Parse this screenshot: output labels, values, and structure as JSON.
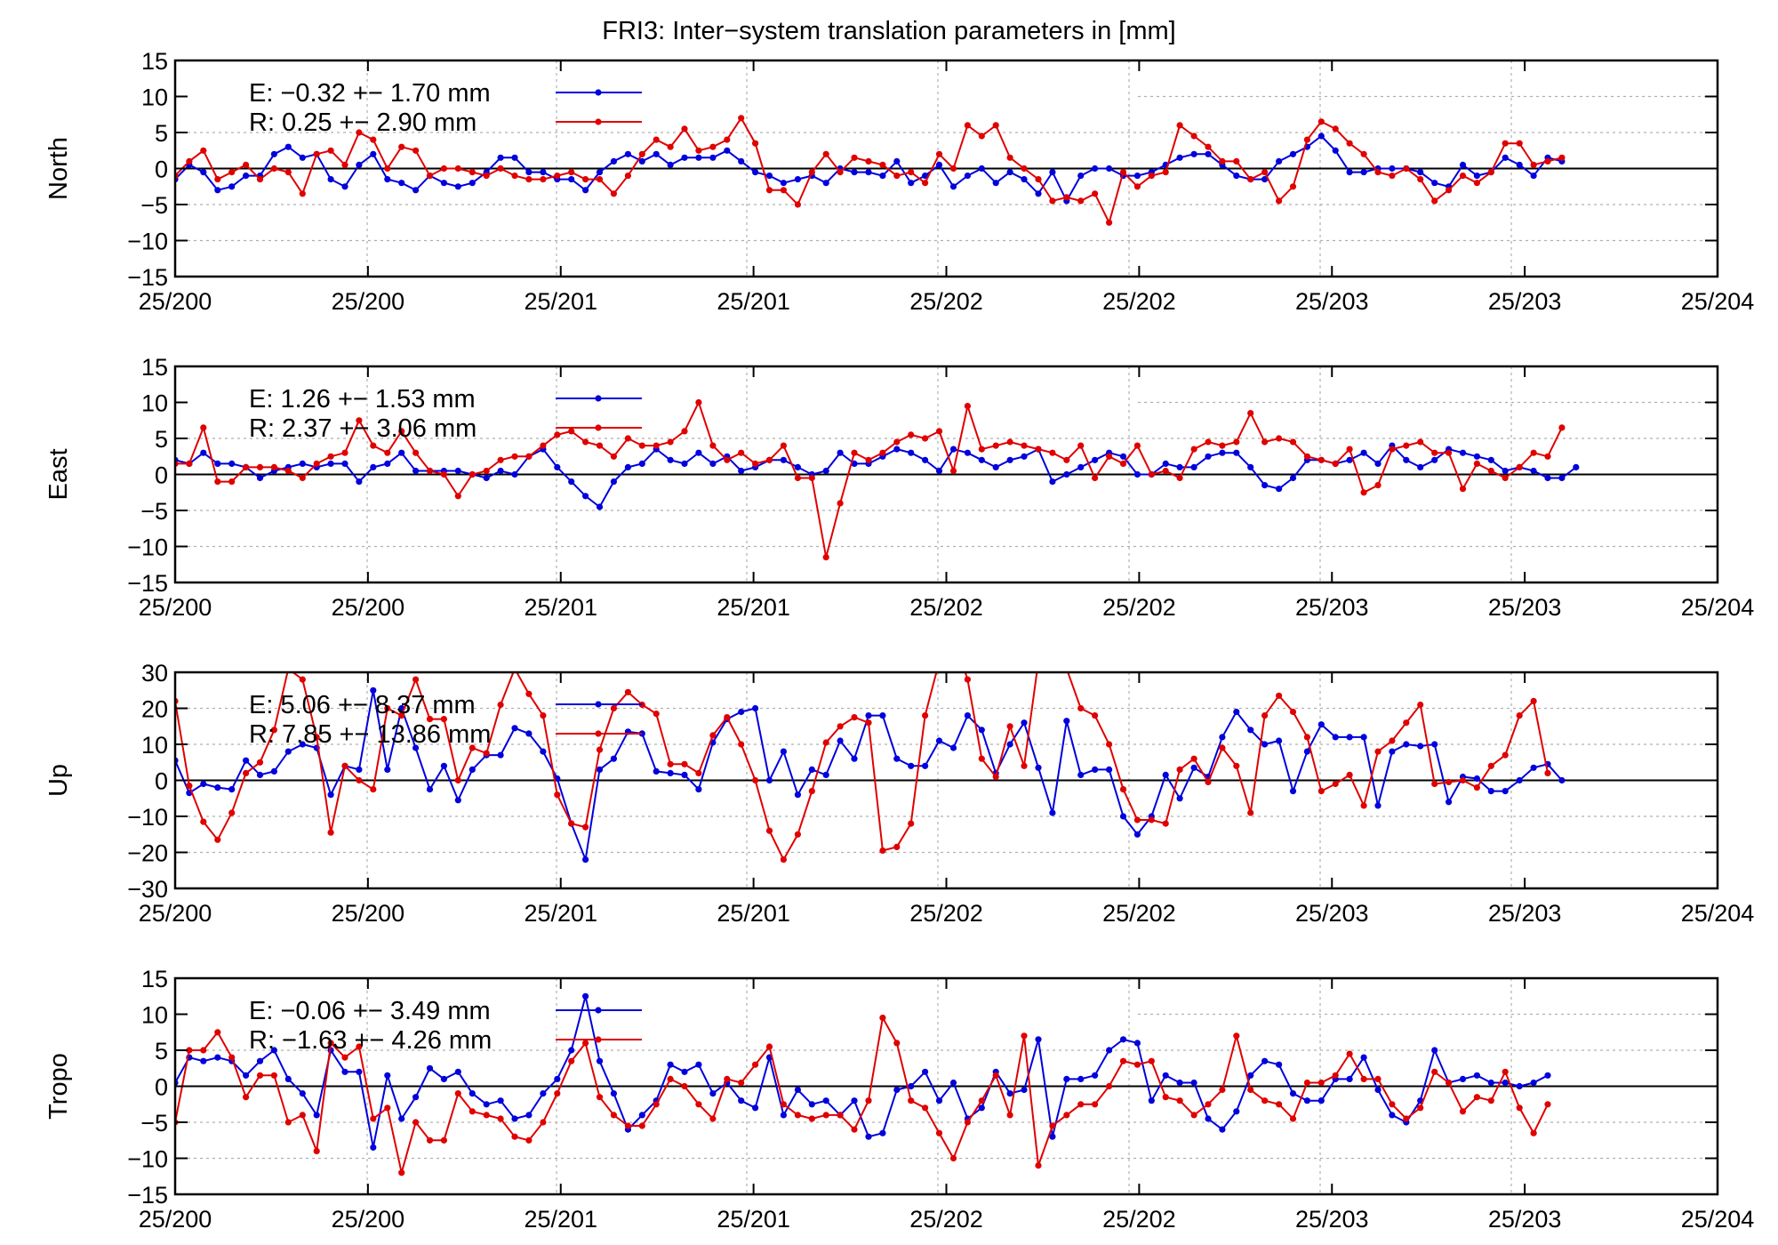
{
  "title": "FRI3: Inter−system translation parameters in [mm]",
  "colors": {
    "E": "#0000dd",
    "R": "#e00000"
  },
  "x_tick_labels": [
    "25/200",
    "25/200",
    "25/201",
    "25/201",
    "25/202",
    "25/202",
    "25/203",
    "25/203",
    "25/204"
  ],
  "chart_data": [
    {
      "type": "line",
      "ylabel": "North",
      "ylim": [
        -15,
        15
      ],
      "yticks": [
        15,
        10,
        5,
        0,
        -5,
        -10,
        -15
      ],
      "ytick_labels": [
        "15",
        "10",
        "5",
        "0",
        "−5",
        "−10",
        "−15"
      ],
      "xlim": [
        0,
        109
      ],
      "series": [
        {
          "name": "E",
          "legend": "E:  −0.32 +− 1.70 mm",
          "values": [
            -1.5,
            0.5,
            -0.5,
            -3,
            -2.5,
            -1,
            -1,
            2,
            3,
            1.5,
            2,
            -1.5,
            -2.5,
            0.5,
            2,
            -1.5,
            -2,
            -3,
            -1,
            -2,
            -2.5,
            -2,
            -0.5,
            1.5,
            1.5,
            -0.5,
            -0.5,
            -1.5,
            -1.5,
            -3,
            -0.5,
            1,
            2,
            1,
            2,
            0.5,
            1.5,
            1.5,
            1.5,
            2.5,
            1,
            -0.5,
            -1,
            -2,
            -1.5,
            -1,
            -2,
            0,
            -0.5,
            -0.5,
            -1,
            1,
            -2,
            -1,
            0.5,
            -2.5,
            -1,
            0,
            -2,
            -0.5,
            -1.5,
            -3.5,
            -0.5,
            -4.5,
            -1,
            0,
            0,
            -1,
            -1,
            -0.5,
            0.5,
            1.5,
            2,
            2,
            0.5,
            -1,
            -1.5,
            -1.5,
            1,
            2,
            3,
            4.5,
            2.5,
            -0.5,
            -0.5,
            0,
            0,
            0,
            -0.5,
            -2,
            -2.5,
            0.5,
            -1,
            -0.5,
            1.5,
            0.5,
            -1,
            1.5,
            1
          ]
        },
        {
          "name": "R",
          "legend": "R:   0.25 +− 2.90 mm",
          "values": [
            -1,
            1,
            2.5,
            -1.5,
            -0.5,
            0.5,
            -1.5,
            0,
            -0.5,
            -3.5,
            2,
            2.5,
            0.5,
            5,
            4,
            0,
            3,
            2.5,
            -1,
            0,
            0,
            -0.5,
            -1,
            0,
            -1,
            -1.5,
            -1.5,
            -1,
            -0.5,
            -1.5,
            -1.5,
            -3.5,
            -1,
            2,
            4,
            3,
            5.5,
            2.5,
            3,
            4,
            7,
            3.5,
            -3,
            -3,
            -5,
            -0.5,
            2,
            -0.5,
            1.5,
            1,
            0.5,
            -1,
            -0.5,
            -2,
            2,
            0,
            6,
            4.5,
            6,
            1.5,
            0,
            -1.5,
            -4.5,
            -4,
            -4.5,
            -3.5,
            -7.5,
            -0.5,
            -2.5,
            -1,
            -0.5,
            6,
            4.5,
            3,
            1,
            1,
            -1.5,
            -0.5,
            -4.5,
            -2.5,
            4,
            6.5,
            5.5,
            3.5,
            2,
            -0.5,
            -1,
            0,
            -1.5,
            -4.5,
            -3,
            -1,
            -2,
            -0.5,
            3.5,
            3.5,
            0.5,
            1,
            1.5
          ]
        }
      ]
    },
    {
      "type": "line",
      "ylabel": "East",
      "ylim": [
        -15,
        15
      ],
      "yticks": [
        15,
        10,
        5,
        0,
        -5,
        -10,
        -15
      ],
      "ytick_labels": [
        "15",
        "10",
        "5",
        "0",
        "−5",
        "−10",
        "−15"
      ],
      "xlim": [
        0,
        109
      ],
      "series": [
        {
          "name": "E",
          "legend": "E:   1.26 +− 1.53 mm",
          "values": [
            2,
            1.5,
            3,
            1.5,
            1.5,
            1,
            -0.5,
            0.5,
            1,
            1.5,
            1,
            1.5,
            1.5,
            -1,
            1,
            1.5,
            3,
            0.5,
            0.5,
            0.5,
            0.5,
            0,
            -0.5,
            0.5,
            0,
            2.5,
            3.5,
            1,
            -1,
            -3,
            -4.5,
            -1,
            1,
            1.5,
            3.5,
            2,
            1.5,
            3,
            1.5,
            2.5,
            0.5,
            1,
            2,
            2,
            1,
            0,
            0.5,
            3,
            1.5,
            1.5,
            2.5,
            3.5,
            3,
            2,
            0.5,
            3.5,
            3,
            2,
            1,
            2,
            2.5,
            3.5,
            -1,
            0,
            1,
            2,
            3,
            2.5,
            0,
            0,
            1.5,
            1,
            1,
            2.5,
            3,
            3,
            1,
            -1.5,
            -2,
            -0.5,
            2,
            2,
            1.5,
            2,
            3,
            1.5,
            4,
            2,
            1,
            2,
            3.5,
            3,
            2.5,
            2,
            0.5,
            1,
            0.5,
            -0.5,
            -0.5,
            1
          ]
        },
        {
          "name": "R",
          "legend": "R:   2.37 +− 3.06 mm",
          "values": [
            1.5,
            1.5,
            6.5,
            -1,
            -1,
            1,
            1,
            1,
            0.5,
            -0.5,
            1.5,
            2.5,
            3,
            7.5,
            4,
            3,
            6,
            3,
            0.5,
            0,
            -3,
            0,
            0.5,
            2,
            2.5,
            2.5,
            4,
            5.5,
            6,
            4.5,
            4,
            2.5,
            5,
            4,
            4,
            4.5,
            6,
            10,
            4,
            2,
            3,
            1.5,
            2,
            4,
            -0.5,
            -0.5,
            -11.5,
            -4,
            3,
            2,
            3,
            4.5,
            5.5,
            5,
            6,
            0.5,
            9.5,
            3.5,
            4,
            4.5,
            4,
            3.5,
            3,
            2,
            4,
            -0.5,
            2.5,
            1.5,
            4,
            0,
            0.5,
            -0.5,
            3.5,
            4.5,
            4,
            4.5,
            8.5,
            4.5,
            5,
            4.5,
            2.5,
            2,
            1.5,
            3.5,
            -2.5,
            -1.5,
            3.5,
            4,
            4.5,
            3,
            3,
            -2,
            1.5,
            0.5,
            -0.5,
            1,
            3,
            2.5,
            6.5
          ]
        }
      ]
    },
    {
      "type": "line",
      "ylabel": "Up",
      "ylim": [
        -30,
        30
      ],
      "yticks": [
        30,
        20,
        10,
        0,
        -10,
        -20,
        -30
      ],
      "ytick_labels": [
        "30",
        "20",
        "10",
        "0",
        "−10",
        "−20",
        "−30"
      ],
      "xlim": [
        0,
        109
      ],
      "series": [
        {
          "name": "E",
          "legend": "E:   5.06 +− 8.37 mm",
          "values": [
            5.5,
            -3.5,
            -1,
            -2,
            -2.5,
            5.5,
            1.5,
            2.5,
            8,
            10,
            9,
            -4,
            4,
            3,
            25,
            3,
            20,
            9,
            -2.5,
            4,
            -5.5,
            3,
            7,
            7,
            14.5,
            13,
            8,
            0.5,
            -12,
            -22,
            3,
            6,
            13.5,
            13,
            2.5,
            2,
            1.5,
            -2.5,
            10.5,
            17,
            19,
            20,
            0,
            8,
            -4,
            3,
            1.5,
            11,
            6,
            18,
            18,
            6,
            4,
            4,
            11,
            9,
            18,
            14,
            2,
            10,
            16,
            3.5,
            -9,
            16.5,
            1.5,
            3,
            3,
            -10,
            -15,
            -10,
            1.5,
            -5,
            3.5,
            1,
            12,
            19,
            14,
            10,
            11,
            -3,
            8,
            15.5,
            12,
            12,
            12,
            -7,
            8,
            10,
            9.5,
            10,
            -6,
            1,
            0.5,
            -3,
            -3,
            0,
            3.5,
            4.5,
            0
          ]
        },
        {
          "name": "R",
          "legend": "R:   7.85 +− 13.86 mm",
          "values": [
            22,
            -1.5,
            -11.5,
            -16.5,
            -9,
            2,
            5,
            14,
            31,
            28,
            12,
            -14.5,
            4,
            0,
            -2.5,
            20,
            18,
            28,
            17,
            17,
            0,
            9,
            7.5,
            21,
            31,
            24,
            18,
            -4,
            -12,
            -13,
            8.5,
            20,
            24.5,
            21,
            18.5,
            4.5,
            4.5,
            2,
            12.5,
            17.5,
            10,
            0,
            -14,
            -22,
            -15,
            -3,
            10.5,
            15,
            17.5,
            16,
            -19.5,
            -18.5,
            -12,
            18,
            33,
            40,
            28,
            6,
            1,
            15,
            4,
            33,
            37,
            31,
            20,
            18,
            10,
            -2.5,
            -11,
            -11,
            -12,
            3,
            6,
            -0.5,
            9,
            4,
            -9,
            18,
            23.5,
            19,
            12,
            -3,
            -1,
            1.5,
            -7,
            8,
            11,
            16,
            21,
            -1,
            -0.5,
            0,
            -2,
            4,
            7,
            18,
            22,
            2
          ]
        }
      ]
    },
    {
      "type": "line",
      "ylabel": "Tropo",
      "ylim": [
        -15,
        15
      ],
      "yticks": [
        15,
        10,
        5,
        0,
        -5,
        -10,
        -15
      ],
      "ytick_labels": [
        "15",
        "10",
        "5",
        "0",
        "−5",
        "−10",
        "−15"
      ],
      "xlim": [
        0,
        109
      ],
      "series": [
        {
          "name": "E",
          "legend": "E:  −0.06 +− 3.49 mm",
          "values": [
            0.5,
            4,
            3.5,
            4,
            3.5,
            1.5,
            3.5,
            5,
            1,
            -1,
            -4,
            5,
            2,
            2,
            -8.5,
            1.5,
            -4.5,
            -1.5,
            2.5,
            1,
            2,
            -1,
            -2.5,
            -2,
            -4.5,
            -4,
            -1,
            1,
            5,
            12.5,
            3.5,
            -1,
            -6,
            -4,
            -2,
            3,
            2,
            3,
            -1,
            0.5,
            -2,
            -3,
            4,
            -4,
            -0.5,
            -2.5,
            -2,
            -4,
            -2,
            -7,
            -6.5,
            -0.5,
            0,
            2,
            -2,
            0.5,
            -4.5,
            -3,
            2,
            -1,
            -0.5,
            6.5,
            -7,
            1,
            1,
            1.5,
            5,
            6.5,
            6,
            -2,
            1.5,
            0.5,
            0.5,
            -4.5,
            -6,
            -3.5,
            1.5,
            3.5,
            3,
            -1,
            -2,
            -2,
            1,
            1,
            4,
            -0.5,
            -4,
            -5,
            -2,
            5,
            0.5,
            1,
            1.5,
            0.5,
            0.5,
            0,
            0.5,
            1.5
          ]
        },
        {
          "name": "R",
          "legend": "R:   −1.63 +− 4.26 mm",
          "values": [
            -5,
            5,
            5,
            7.5,
            4,
            -1.5,
            1.5,
            1.5,
            -5,
            -4,
            -9,
            6,
            4,
            5.5,
            -4.5,
            -3,
            -12,
            -5,
            -7.5,
            -7.5,
            -1,
            -3.5,
            -4,
            -4.5,
            -7,
            -7.5,
            -5,
            -1,
            3.5,
            6,
            -1.5,
            -4,
            -5.5,
            -5.5,
            -2.5,
            1,
            0,
            -2.5,
            -4.5,
            1,
            0.5,
            3,
            5.5,
            -2.5,
            -4,
            -4.5,
            -4,
            -4,
            -6,
            -2,
            9.5,
            6,
            -2,
            -3,
            -6.5,
            -10,
            -5,
            -2,
            1.5,
            -4,
            7,
            -11,
            -5.5,
            -4,
            -2.5,
            -2.5,
            0,
            3.5,
            3,
            3.5,
            -1.5,
            -2,
            -4,
            -2.5,
            -0.5,
            7,
            -0.5,
            -2,
            -2.5,
            -4.5,
            0.5,
            0.5,
            1.5,
            4.5,
            1,
            1,
            -2.5,
            -4.5,
            -3,
            2,
            0.5,
            -3.5,
            -1.5,
            -2,
            2,
            -3,
            -6.5,
            -2.5
          ]
        }
      ]
    }
  ]
}
